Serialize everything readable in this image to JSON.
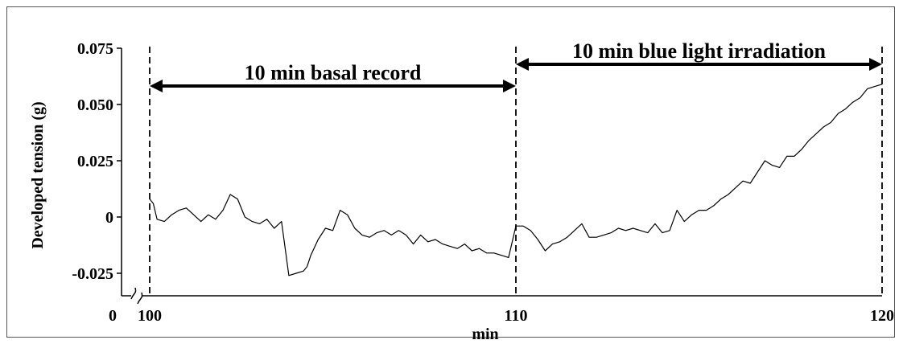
{
  "chart_data": {
    "type": "line",
    "xlabel": "min",
    "ylabel": "Developed tension (g)",
    "title": "",
    "x_axis_break": true,
    "x_ticks": [
      {
        "value": 0,
        "label": "0"
      },
      {
        "value": 100,
        "label": "100"
      },
      {
        "value": 110,
        "label": "110"
      },
      {
        "value": 120,
        "label": "120"
      }
    ],
    "y_ticks": [
      {
        "value": 0.075,
        "label": "0.075"
      },
      {
        "value": 0.05,
        "label": "0.050"
      },
      {
        "value": 0.025,
        "label": "0.025"
      },
      {
        "value": 0,
        "label": "0"
      },
      {
        "value": -0.025,
        "label": "-0.025"
      }
    ],
    "xlim": [
      100,
      120
    ],
    "ylim": [
      -0.035,
      0.075
    ],
    "grid": false,
    "vertical_markers": [
      100,
      110,
      120
    ],
    "annotations": [
      {
        "text": "10  min  basal record",
        "from": 100,
        "to": 110
      },
      {
        "text": "10  min  blue light irradiation",
        "from": 110,
        "to": 120
      }
    ],
    "series": [
      {
        "color": "#000000",
        "x": [
          100.0,
          100.1,
          100.2,
          100.4,
          100.6,
          100.8,
          101.0,
          101.2,
          101.4,
          101.6,
          101.8,
          102.0,
          102.2,
          102.4,
          102.6,
          102.8,
          103.0,
          103.2,
          103.4,
          103.6,
          103.8,
          104.0,
          104.2,
          104.3,
          104.4,
          104.6,
          104.8,
          105.0,
          105.2,
          105.4,
          105.6,
          105.8,
          106.0,
          106.2,
          106.4,
          106.6,
          106.8,
          107.0,
          107.2,
          107.4,
          107.6,
          107.8,
          108.0,
          108.2,
          108.4,
          108.6,
          108.8,
          109.0,
          109.2,
          109.4,
          109.6,
          109.8,
          110.0,
          110.2,
          110.4,
          110.6,
          110.8,
          111.0,
          111.2,
          111.4,
          111.6,
          111.8,
          112.0,
          112.2,
          112.4,
          112.6,
          112.8,
          113.0,
          113.2,
          113.4,
          113.6,
          113.8,
          114.0,
          114.2,
          114.4,
          114.6,
          114.8,
          115.0,
          115.2,
          115.4,
          115.6,
          115.8,
          116.0,
          116.2,
          116.4,
          116.6,
          116.8,
          117.0,
          117.2,
          117.4,
          117.6,
          117.8,
          118.0,
          118.2,
          118.4,
          118.6,
          118.8,
          119.0,
          119.2,
          119.4,
          119.6,
          119.8,
          120.0
        ],
        "y": [
          0.008,
          0.006,
          -0.001,
          -0.002,
          0.001,
          0.003,
          0.004,
          0.001,
          -0.002,
          0.001,
          -0.001,
          0.003,
          0.01,
          0.008,
          0.0,
          -0.002,
          -0.003,
          -0.001,
          -0.005,
          -0.002,
          -0.026,
          -0.025,
          -0.024,
          -0.022,
          -0.017,
          -0.01,
          -0.005,
          -0.006,
          0.003,
          0.001,
          -0.005,
          -0.008,
          -0.009,
          -0.007,
          -0.006,
          -0.008,
          -0.006,
          -0.008,
          -0.012,
          -0.008,
          -0.011,
          -0.01,
          -0.012,
          -0.013,
          -0.014,
          -0.012,
          -0.015,
          -0.014,
          -0.016,
          -0.016,
          -0.017,
          -0.018,
          -0.004,
          -0.004,
          -0.006,
          -0.01,
          -0.015,
          -0.012,
          -0.011,
          -0.009,
          -0.006,
          -0.003,
          -0.009,
          -0.009,
          -0.008,
          -0.007,
          -0.005,
          -0.006,
          -0.005,
          -0.006,
          -0.007,
          -0.003,
          -0.007,
          -0.006,
          0.003,
          -0.002,
          0.001,
          0.003,
          0.003,
          0.005,
          0.008,
          0.01,
          0.013,
          0.016,
          0.015,
          0.02,
          0.025,
          0.023,
          0.022,
          0.027,
          0.027,
          0.03,
          0.034,
          0.037,
          0.04,
          0.042,
          0.046,
          0.048,
          0.051,
          0.053,
          0.057,
          0.058,
          0.059
        ]
      }
    ]
  }
}
